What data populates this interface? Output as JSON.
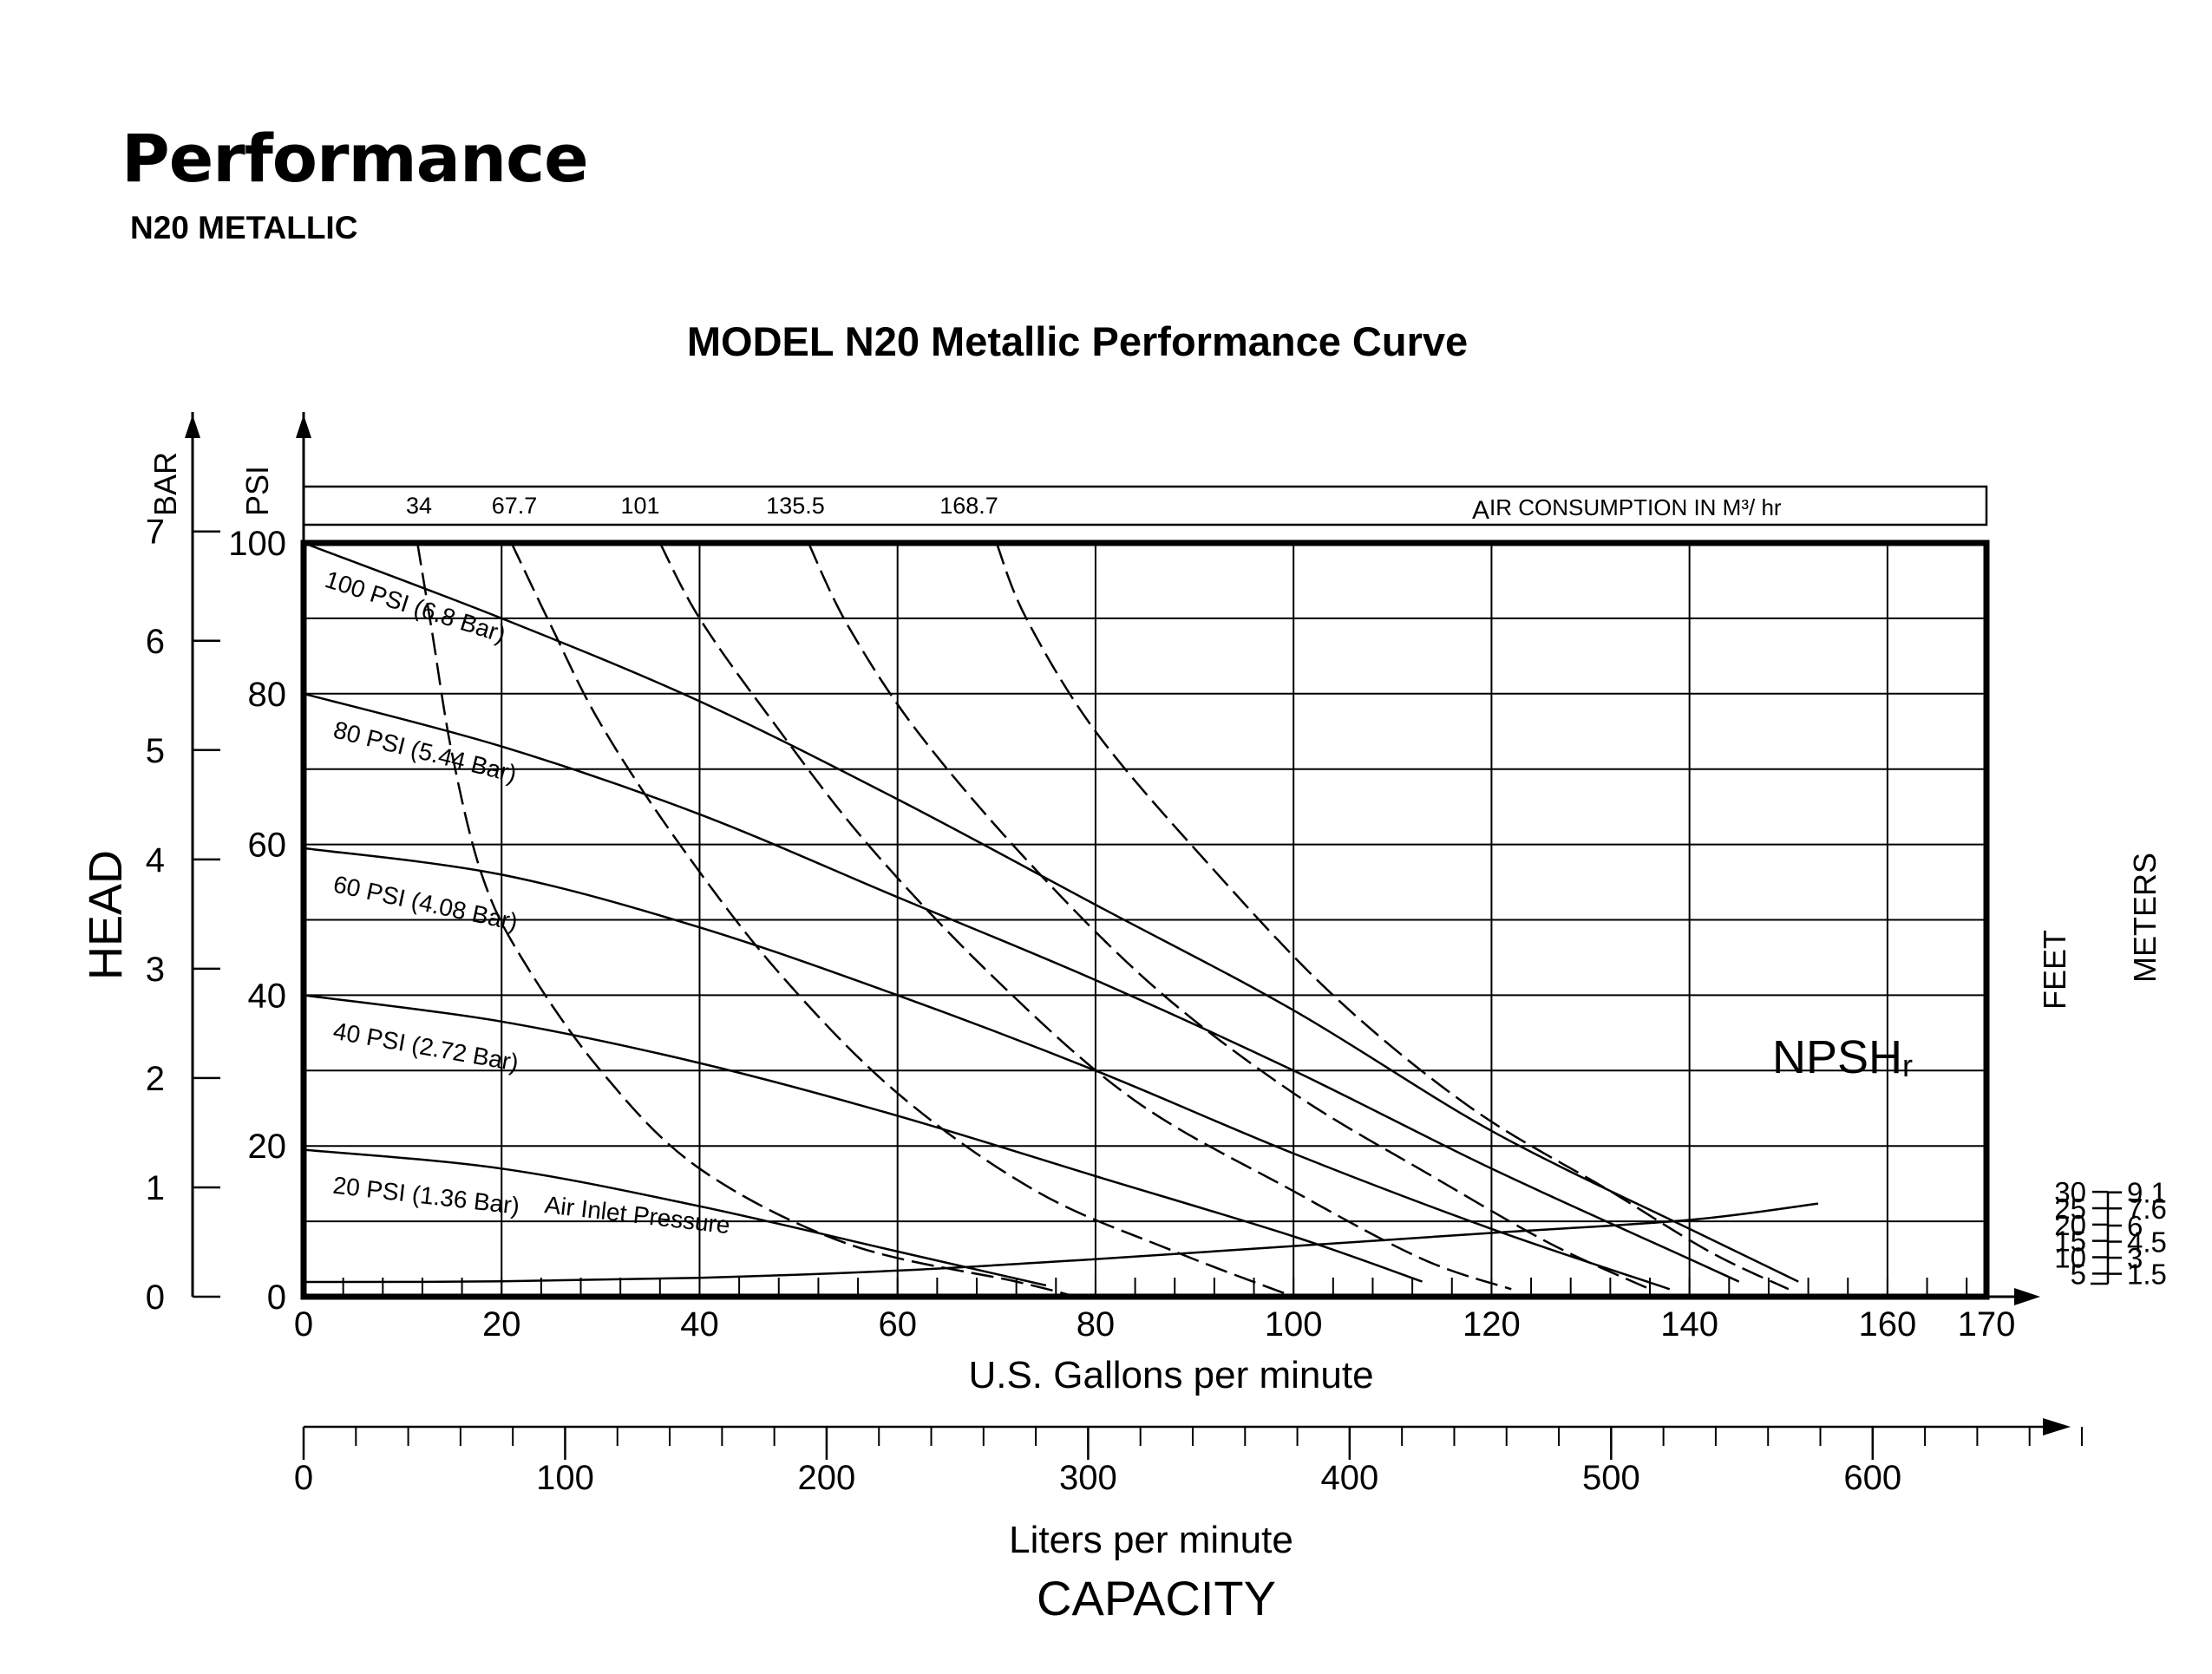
{
  "page": {
    "title": "Performance",
    "subtitle": "N20 METALLIC"
  },
  "chart_data": {
    "type": "line",
    "title": "MODEL N20 Metallic Performance Curve",
    "xlabel": "U.S. Gallons per minute",
    "xlabel_secondary": "Liters per minute",
    "capacity_label": "CAPACITY",
    "ylabel": "HEAD",
    "ylabel_psi": "PSI",
    "ylabel_bar": "BAR",
    "xlim": [
      0,
      170
    ],
    "ylim": [
      0,
      100
    ],
    "x_ticks": [
      0,
      20,
      40,
      60,
      80,
      100,
      120,
      140,
      160,
      170
    ],
    "psi_ticks": [
      0,
      20,
      40,
      60,
      80,
      100
    ],
    "bar_ticks": [
      0,
      1,
      2,
      3,
      4,
      5,
      6,
      7
    ],
    "lpm_ticks": [
      0,
      100,
      200,
      300,
      400,
      500,
      600
    ],
    "grid": true,
    "air_consumption": {
      "label_initial": "A",
      "label": "IR CONSUMPTION IN M³/ hr",
      "values": [
        "34",
        "67.7",
        "101",
        "135.5",
        "168.7"
      ],
      "curves": [
        {
          "value": "34",
          "points": [
            [
              11.5,
              100
            ],
            [
              13,
              88
            ],
            [
              15,
              72
            ],
            [
              18,
              56
            ],
            [
              22,
              45
            ],
            [
              30,
              30
            ],
            [
              40,
              17
            ],
            [
              55,
              7
            ],
            [
              72,
              2
            ],
            [
              78,
              0
            ]
          ]
        },
        {
          "value": "67.7",
          "points": [
            [
              21,
              100
            ],
            [
              25,
              89
            ],
            [
              30,
              76
            ],
            [
              38,
              60
            ],
            [
              48,
              43
            ],
            [
              60,
              27
            ],
            [
              74,
              14
            ],
            [
              88,
              6
            ],
            [
              100,
              0
            ]
          ]
        },
        {
          "value": "101",
          "points": [
            [
              36,
              100
            ],
            [
              40,
              90
            ],
            [
              47,
              77
            ],
            [
              57,
              60
            ],
            [
              70,
              42
            ],
            [
              84,
              26
            ],
            [
              100,
              14
            ],
            [
              113,
              5
            ],
            [
              122,
              1
            ]
          ]
        },
        {
          "value": "135.5",
          "points": [
            [
              51,
              100
            ],
            [
              55,
              89
            ],
            [
              62,
              75
            ],
            [
              73,
              58
            ],
            [
              86,
              41
            ],
            [
              100,
              27
            ],
            [
              114,
              16
            ],
            [
              126,
              7
            ],
            [
              136,
              1
            ]
          ]
        },
        {
          "value": "168.7",
          "points": [
            [
              70,
              100
            ],
            [
              73,
              90
            ],
            [
              80,
              75
            ],
            [
              91,
              58
            ],
            [
              104,
              40
            ],
            [
              118,
              25
            ],
            [
              132,
              14
            ],
            [
              142,
              6
            ],
            [
              150,
              1
            ]
          ]
        }
      ]
    },
    "series": [
      {
        "name": "100 PSI (6.8 Bar)",
        "points": [
          [
            0,
            100
          ],
          [
            20,
            90
          ],
          [
            40,
            79
          ],
          [
            60,
            66
          ],
          [
            80,
            52
          ],
          [
            100,
            38
          ],
          [
            120,
            22
          ],
          [
            140,
            9
          ],
          [
            151,
            2
          ]
        ]
      },
      {
        "name": "80 PSI (5.44 Bar)",
        "points": [
          [
            0,
            80
          ],
          [
            20,
            73
          ],
          [
            40,
            64
          ],
          [
            60,
            53
          ],
          [
            80,
            42
          ],
          [
            100,
            30
          ],
          [
            120,
            17
          ],
          [
            140,
            5
          ],
          [
            145,
            2
          ]
        ]
      },
      {
        "name": "60 PSI (4.08 Bar)",
        "points": [
          [
            0,
            59.5
          ],
          [
            20,
            56
          ],
          [
            40,
            49
          ],
          [
            60,
            40
          ],
          [
            80,
            30
          ],
          [
            100,
            19
          ],
          [
            120,
            9
          ],
          [
            138,
            1
          ]
        ]
      },
      {
        "name": "40 PSI (2.72 Bar)",
        "points": [
          [
            0,
            40
          ],
          [
            20,
            36.5
          ],
          [
            40,
            31
          ],
          [
            60,
            24
          ],
          [
            80,
            16
          ],
          [
            100,
            8
          ],
          [
            113,
            2
          ]
        ]
      },
      {
        "name": "20 PSI (1.36 Bar)",
        "points": [
          [
            0,
            19.5
          ],
          [
            20,
            17
          ],
          [
            40,
            12
          ],
          [
            60,
            6
          ],
          [
            75,
            1.5
          ]
        ]
      }
    ],
    "inlet_label": "Air Inlet Pressure",
    "npsh": {
      "label_main": "NPSH",
      "label_sub": "r",
      "feet_label": "FEET",
      "meters_label": "METERS",
      "feet_ticks": [
        "5",
        "10",
        "15",
        "20",
        "25",
        "30"
      ],
      "meters_ticks": [
        "1.5",
        "3",
        "4.5",
        "6",
        "7.6",
        "9.1"
      ],
      "points": [
        [
          0,
          4.5
        ],
        [
          20,
          4.7
        ],
        [
          40,
          5.8
        ],
        [
          60,
          8
        ],
        [
          80,
          11.5
        ],
        [
          100,
          15.5
        ],
        [
          120,
          19.5
        ],
        [
          140,
          23.5
        ],
        [
          153,
          28.5
        ]
      ]
    }
  }
}
